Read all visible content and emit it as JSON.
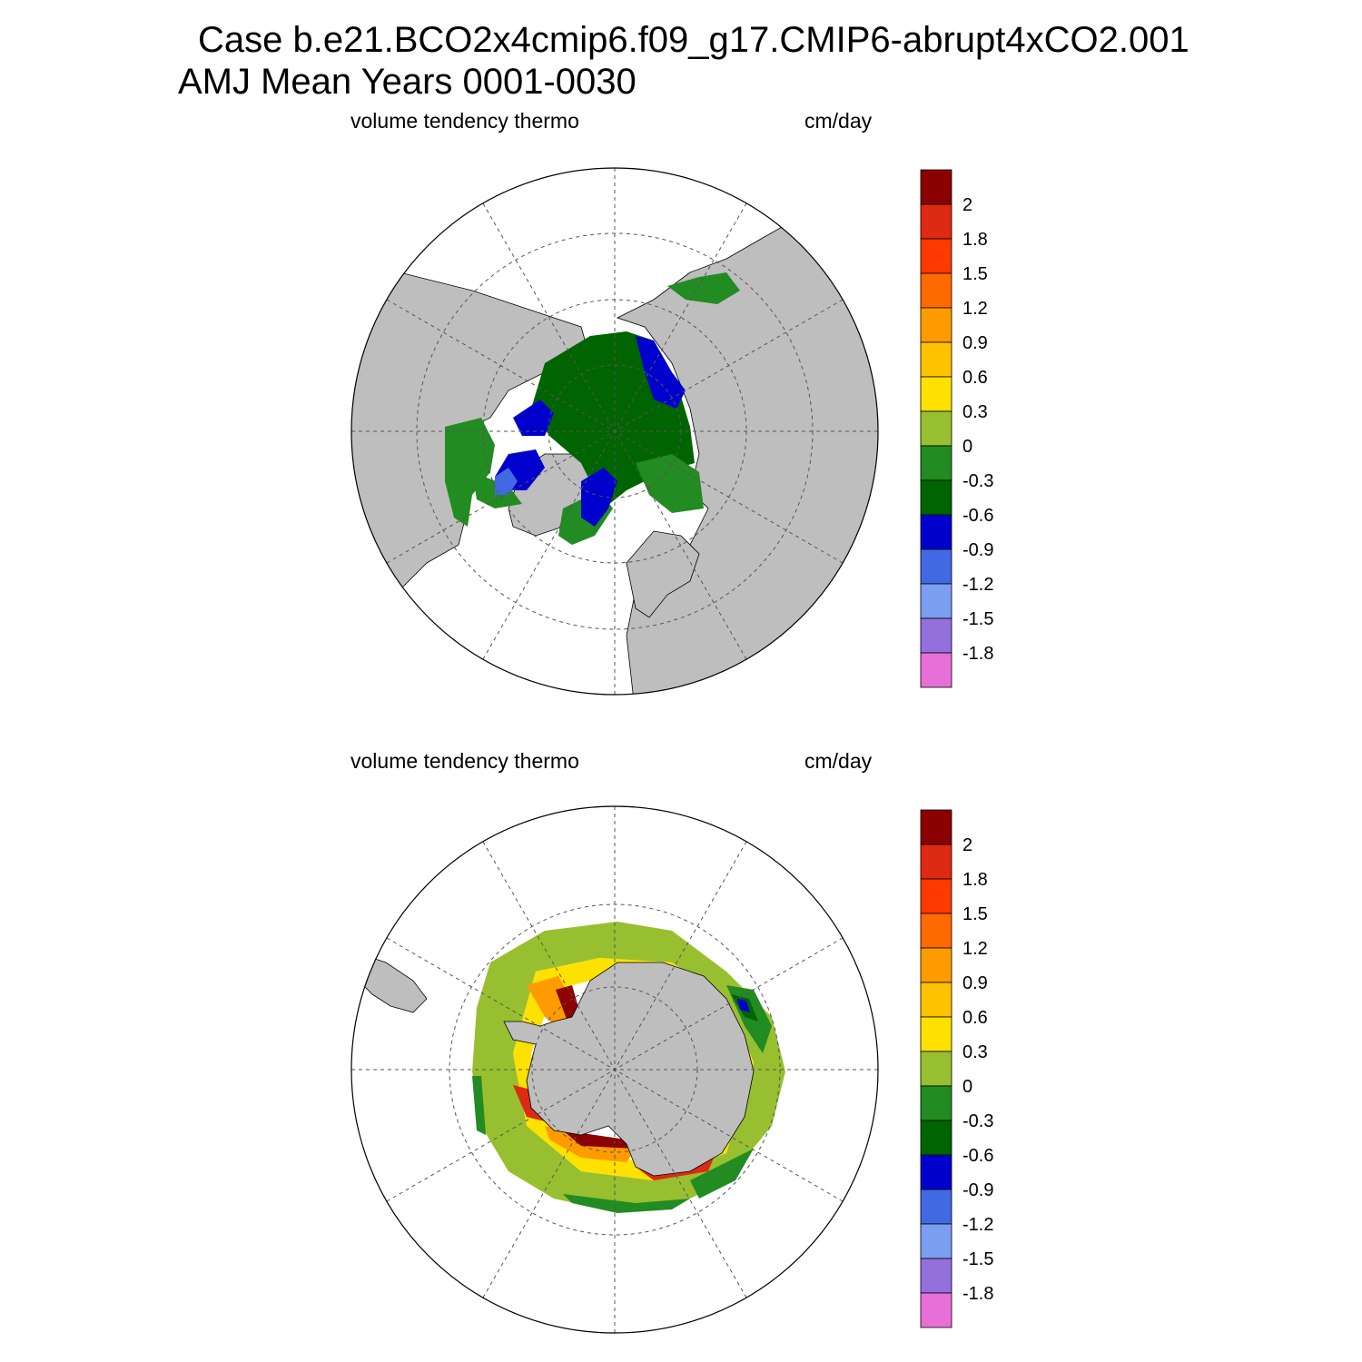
{
  "title": {
    "line1": "Case b.e21.BCO2x4cmip6.f09_g17.CMIP6-abrupt4xCO2.001",
    "line2": "AMJ Mean   Years 0001-0030"
  },
  "panels": [
    {
      "id": "north",
      "variable": "volume tendency thermo",
      "units": "cm/day"
    },
    {
      "id": "south",
      "variable": "volume tendency thermo",
      "units": "cm/day"
    }
  ],
  "colorbar": {
    "labels": [
      "2",
      "1.8",
      "1.5",
      "1.2",
      "0.9",
      "0.6",
      "0.3",
      "0",
      "-0.3",
      "-0.6",
      "-0.9",
      "-1.2",
      "-1.5",
      "-1.8"
    ],
    "colors": [
      "#8b0000",
      "#dd2a12",
      "#ff3a00",
      "#ff6a00",
      "#ff9b00",
      "#ffc200",
      "#ffe100",
      "#98bf2f",
      "#228b22",
      "#006400",
      "#0000cd",
      "#4169e1",
      "#7b9ff0",
      "#9370db",
      "#e66fd8"
    ]
  },
  "map_colors": {
    "land": "#bebebe",
    "ocean": "#ffffff"
  }
}
